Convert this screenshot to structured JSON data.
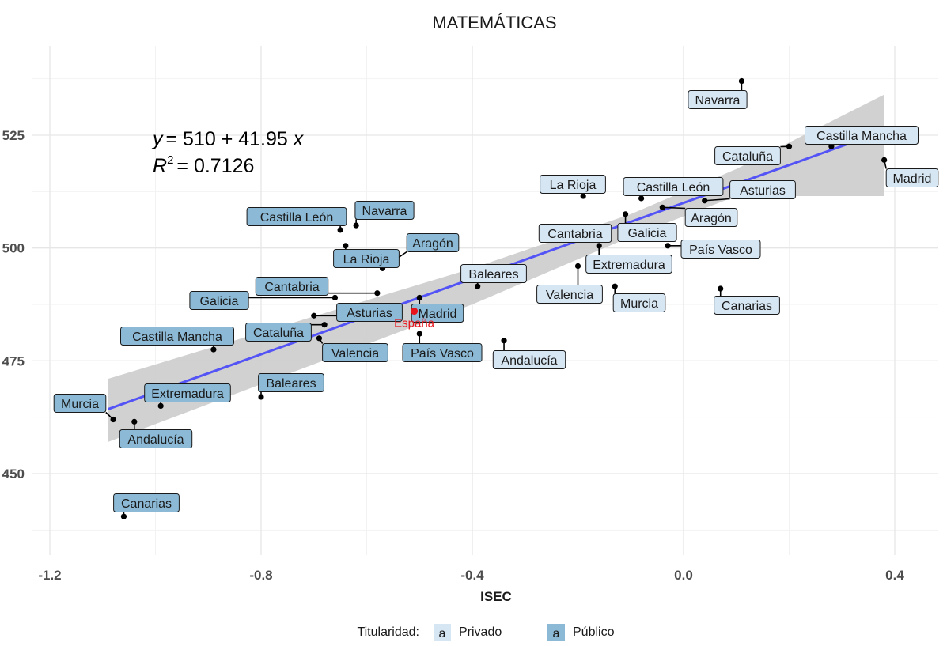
{
  "chart_data": {
    "type": "scatter",
    "title": "MATEMÁTICAS",
    "xlabel": "ISEC",
    "ylabel": "",
    "xlim": [
      -1.2,
      0.45
    ],
    "ylim": [
      433,
      543
    ],
    "xticks": [
      "-1.2",
      "-0.8",
      "-0.4",
      "0.0",
      "0.4"
    ],
    "yticks": [
      "450",
      "475",
      "500",
      "525"
    ],
    "grid": true,
    "equation": {
      "lhs": "y",
      "rhs": "= 510 + 41.95 ",
      "var": "x"
    },
    "r_squared": {
      "symbol": "R",
      "exp": "2",
      "value": "= 0.7126"
    },
    "regression": {
      "intercept": 510,
      "slope": 41.95,
      "x_range": [
        -1.09,
        0.38
      ]
    },
    "reference_point": {
      "label": "España",
      "x": -0.51,
      "y": 486,
      "color": "#e8141b"
    },
    "legend": {
      "title": "Titularidad:",
      "key_glyph": "a",
      "position": "bottom",
      "items": [
        {
          "name": "Privado",
          "color": "#d7e6f3"
        },
        {
          "name": "Público",
          "color": "#8cbad6"
        }
      ]
    },
    "series": [
      {
        "name": "Privado",
        "color": "#d7e6f3",
        "points": [
          {
            "label": "Navarra",
            "x": 0.11,
            "y": 537
          },
          {
            "label": "Castilla Mancha",
            "x": 0.28,
            "y": 522.5
          },
          {
            "label": "Cataluña",
            "x": 0.2,
            "y": 522.5
          },
          {
            "label": "Madrid",
            "x": 0.38,
            "y": 519.5
          },
          {
            "label": "La Rioja",
            "x": -0.19,
            "y": 511.5
          },
          {
            "label": "Castilla León",
            "x": -0.08,
            "y": 511
          },
          {
            "label": "Asturias",
            "x": 0.04,
            "y": 510.5
          },
          {
            "label": "Aragón",
            "x": -0.04,
            "y": 509
          },
          {
            "label": "Galicia",
            "x": -0.11,
            "y": 507.5
          },
          {
            "label": "Cantabria",
            "x": -0.16,
            "y": 504.5
          },
          {
            "label": "País Vasco",
            "x": -0.03,
            "y": 500.5
          },
          {
            "label": "Extremadura",
            "x": -0.16,
            "y": 500.5
          },
          {
            "label": "Valencia",
            "x": -0.2,
            "y": 496
          },
          {
            "label": "Baleares",
            "x": -0.39,
            "y": 491.5
          },
          {
            "label": "Murcia",
            "x": -0.13,
            "y": 491.5
          },
          {
            "label": "Canarias",
            "x": 0.07,
            "y": 491
          },
          {
            "label": "Andalucía",
            "x": -0.34,
            "y": 479.5
          }
        ]
      },
      {
        "name": "Público",
        "color": "#8cbad6",
        "points": [
          {
            "label": "Navarra",
            "x": -0.62,
            "y": 505
          },
          {
            "label": "Castilla León",
            "x": -0.65,
            "y": 504
          },
          {
            "label": "Aragón",
            "x": -0.57,
            "y": 495.5
          },
          {
            "label": "La Rioja",
            "x": -0.64,
            "y": 500.5
          },
          {
            "label": "Cantabria",
            "x": -0.58,
            "y": 490
          },
          {
            "label": "Galicia",
            "x": -0.66,
            "y": 489
          },
          {
            "label": "Madrid",
            "x": -0.5,
            "y": 489
          },
          {
            "label": "Asturias",
            "x": -0.7,
            "y": 485
          },
          {
            "label": "Cataluña",
            "x": -0.68,
            "y": 483
          },
          {
            "label": "Valencia",
            "x": -0.69,
            "y": 480
          },
          {
            "label": "País Vasco",
            "x": -0.5,
            "y": 481
          },
          {
            "label": "Castilla Mancha",
            "x": -0.89,
            "y": 477.5
          },
          {
            "label": "Baleares",
            "x": -0.8,
            "y": 467
          },
          {
            "label": "Extremadura",
            "x": -0.99,
            "y": 465
          },
          {
            "label": "Murcia",
            "x": -1.08,
            "y": 462
          },
          {
            "label": "Andalucía",
            "x": -1.04,
            "y": 461.5
          },
          {
            "label": "Canarias",
            "x": -1.06,
            "y": 440.5
          }
        ]
      }
    ]
  }
}
